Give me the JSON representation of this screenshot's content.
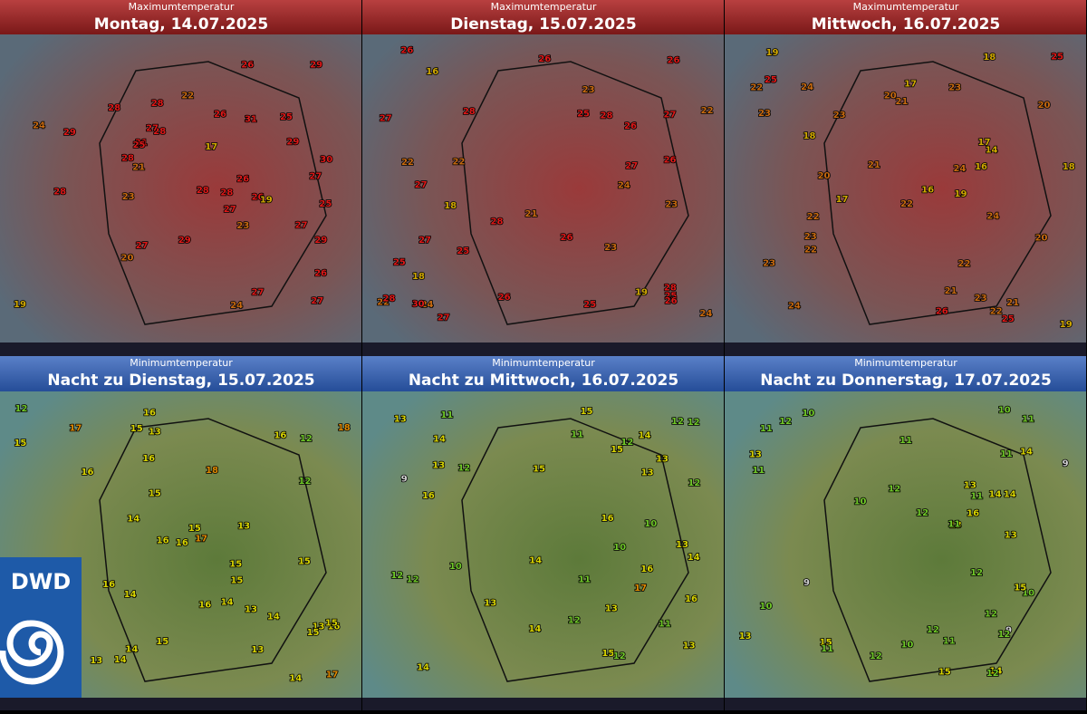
{
  "panels": [
    {
      "kind": "Maximumtemperatur",
      "date": "Montag, 14.07.2025",
      "stations": [
        19,
        28,
        26,
        20,
        19,
        23,
        25,
        27,
        26,
        26,
        26,
        28,
        29,
        27,
        27,
        31,
        29,
        29,
        28,
        25,
        27,
        24,
        28,
        28,
        29,
        25,
        24,
        22,
        27,
        21,
        23,
        26,
        27,
        27,
        28,
        29,
        30,
        31,
        17,
        28
      ]
    },
    {
      "kind": "Maximumtemperatur",
      "date": "Dienstag, 15.07.2025",
      "stations": [
        19,
        18,
        22,
        16,
        22,
        23,
        21,
        24,
        25,
        26,
        26,
        27,
        26,
        25,
        24,
        28,
        27,
        26,
        27,
        22,
        25,
        28,
        27,
        26,
        28,
        18,
        25,
        23,
        26,
        30,
        27,
        26,
        28,
        24,
        27,
        25,
        26,
        22,
        23,
        28
      ]
    },
    {
      "kind": "Maximumtemperatur",
      "date": "Mittwoch, 16.07.2025",
      "stations": [
        17,
        16,
        18,
        19,
        21,
        20,
        23,
        22,
        22,
        21,
        20,
        19,
        16,
        14,
        18,
        17,
        22,
        23,
        24,
        23,
        21,
        20,
        25,
        24,
        23,
        22,
        25,
        19,
        26,
        24,
        23,
        20,
        18,
        22,
        21,
        23,
        25,
        24,
        17,
        22
      ]
    },
    {
      "kind": "Minimumtemperatur",
      "date": "Nacht zu Dienstag, 15.07.2025",
      "stations": [
        17,
        16,
        17,
        18,
        15,
        12,
        13,
        13,
        14,
        15,
        16,
        15,
        14,
        16,
        16,
        15,
        13,
        14,
        16,
        17,
        15,
        14,
        13,
        15,
        16,
        16,
        13,
        14,
        15,
        15,
        12,
        13,
        16,
        18,
        15,
        14,
        12,
        14,
        15,
        16
      ]
    },
    {
      "kind": "Minimumtemperatur",
      "date": "Nacht zu Mittwoch, 16.07.2025",
      "stations": [
        15,
        13,
        16,
        14,
        15,
        16,
        12,
        13,
        14,
        12,
        13,
        11,
        12,
        10,
        12,
        11,
        13,
        12,
        16,
        17,
        14,
        13,
        10,
        11,
        12,
        13,
        15,
        14,
        12,
        9,
        13,
        12,
        11,
        14,
        16,
        15,
        13,
        12,
        14,
        10
      ]
    },
    {
      "kind": "Minimumtemperatur",
      "date": "Nacht zu Donnerstag, 17.07.2025",
      "stations": [
        16,
        15,
        14,
        12,
        11,
        10,
        13,
        12,
        11,
        11,
        10,
        9,
        12,
        13,
        11,
        14,
        12,
        10,
        9,
        11,
        13,
        12,
        15,
        14,
        12,
        11,
        10,
        10,
        9,
        12,
        13,
        11,
        14,
        15,
        13,
        12,
        11,
        10,
        12,
        11
      ]
    }
  ],
  "logo": "DWD"
}
